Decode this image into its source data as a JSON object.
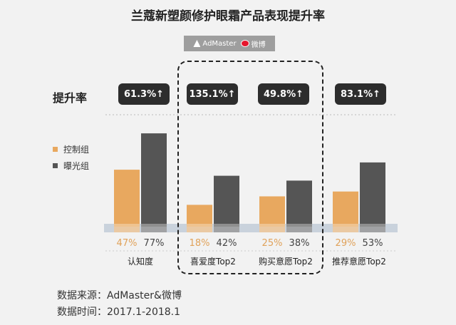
{
  "title": "兰蔻新塑颜修护眼霜产品表现提升率",
  "logos": {
    "adm_text": "AdMaster",
    "weibo_text": "微博"
  },
  "lift_label": "提升率",
  "legend": [
    {
      "label": "控制组",
      "color": "#e8a85f"
    },
    {
      "label": "曝光组",
      "color": "#555555"
    }
  ],
  "source": {
    "line1": "数据来源：AdMaster&微博",
    "line2": "数据时间：2017.1-2018.1"
  },
  "chart_data": {
    "type": "bar",
    "categories": [
      "认知度",
      "喜爱度Top2",
      "购买意愿Top2",
      "推荐意愿Top2"
    ],
    "series": [
      {
        "name": "控制组",
        "values": [
          47,
          18,
          25,
          29
        ],
        "labels": [
          "47%",
          "18%",
          "25%",
          "29%"
        ]
      },
      {
        "name": "曝光组",
        "values": [
          77,
          42,
          38,
          53
        ],
        "labels": [
          "77%",
          "42%",
          "38%",
          "53%"
        ]
      }
    ],
    "lift": [
      "61.3%↑",
      "135.1%↑",
      "49.8%↑",
      "83.1%↑"
    ],
    "ylim": [
      0,
      100
    ],
    "title": "兰蔻新塑颜修护眼霜产品表现提升率",
    "highlighted_categories": [
      "喜爱度Top2",
      "购买意愿Top2"
    ],
    "colors": {
      "control": "#e8a85f",
      "exposed": "#555555",
      "control_label": "#e0a25a",
      "exposed_label": "#444444"
    }
  }
}
